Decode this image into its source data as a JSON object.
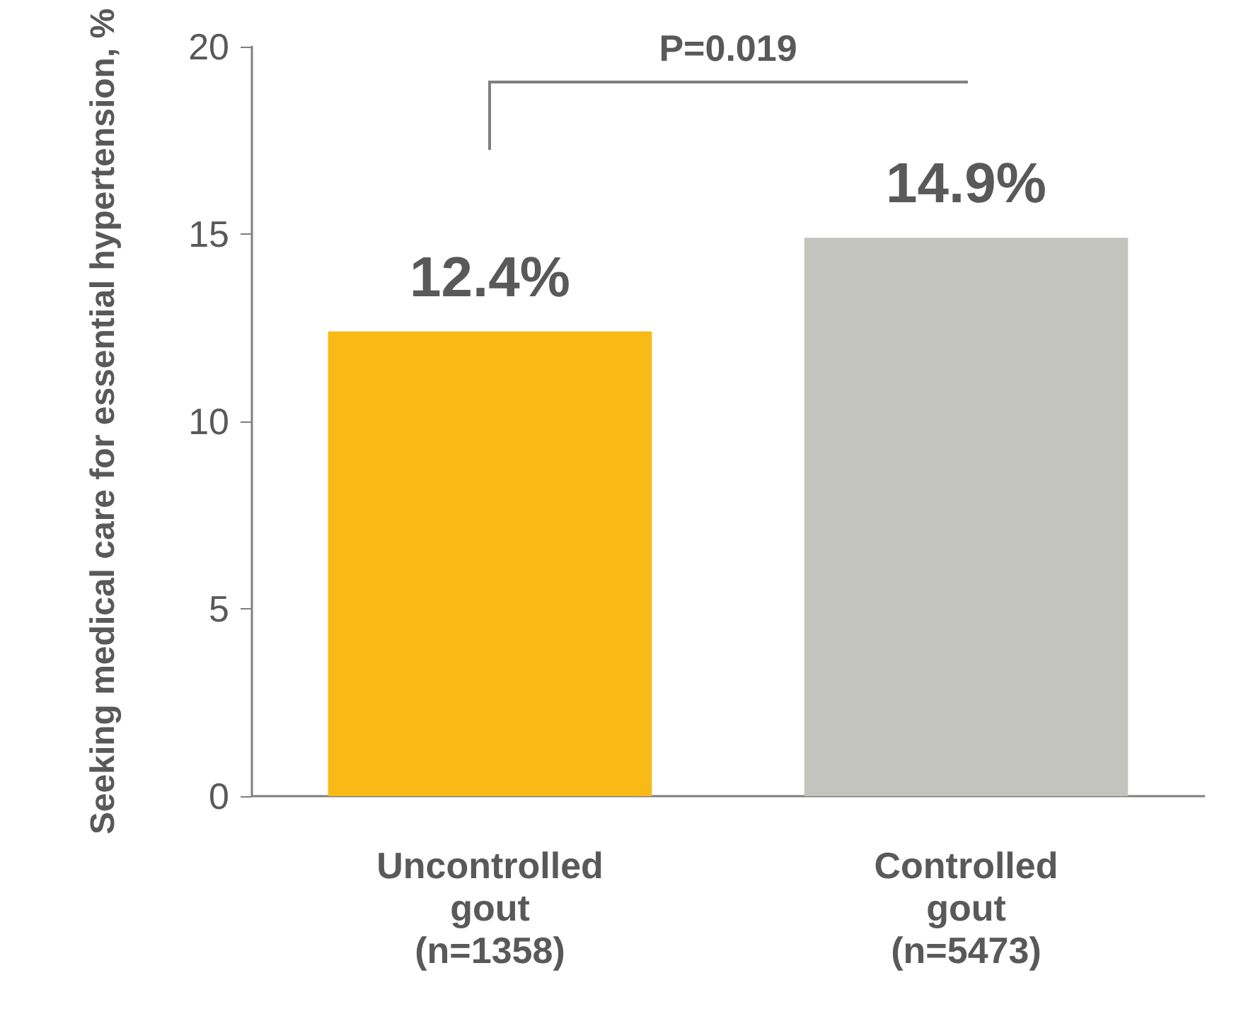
{
  "chart_data": {
    "type": "bar",
    "categories": [
      "Uncontrolled\ngout\n(n=1358)",
      "Controlled\ngout\n(n=5473)"
    ],
    "values": [
      12.4,
      14.9
    ],
    "colors": [
      "#f9b916",
      "#c4c4bf"
    ],
    "value_labels": [
      "12.4%",
      "14.9%"
    ],
    "ylabel": "Seeking medical care for essential hypertension, %",
    "ylim": [
      0,
      20
    ],
    "yticks": [
      0,
      5,
      10,
      15,
      20
    ],
    "annotations": [
      "P=0.019"
    ]
  }
}
